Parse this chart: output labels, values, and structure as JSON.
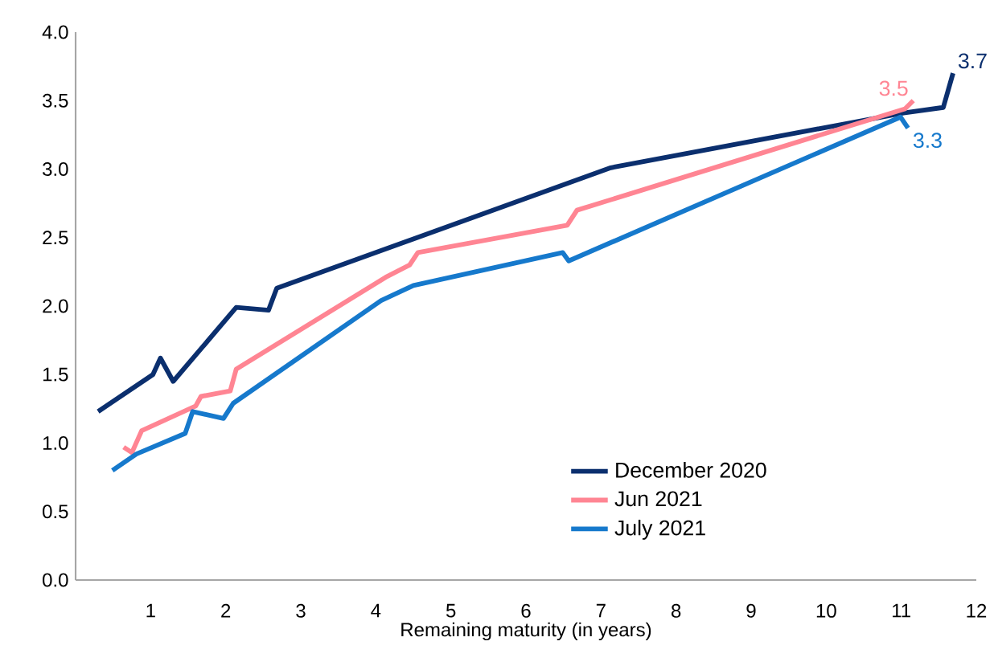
{
  "chart_data": {
    "type": "line",
    "xlabel": "Remaining maturity (in years)",
    "xlim": [
      0,
      12
    ],
    "xticks": [
      1,
      2,
      3,
      4,
      5,
      6,
      7,
      8,
      9,
      10,
      11,
      12
    ],
    "ylim": [
      0,
      4
    ],
    "yticks": [
      {
        "value": 0,
        "label": "0.0"
      },
      {
        "value": 0.5,
        "label": "0.5"
      },
      {
        "value": 1,
        "label": "1.0"
      },
      {
        "value": 1.5,
        "label": "1.5"
      },
      {
        "value": 2,
        "label": "2.0"
      },
      {
        "value": 2.5,
        "label": "2.5"
      },
      {
        "value": 3,
        "label": "3.0"
      },
      {
        "value": 3.5,
        "label": "3.5"
      },
      {
        "value": 4,
        "label": "4.0"
      }
    ],
    "grid": false,
    "legend": "bottom right",
    "marker": "none",
    "line_style": "solid",
    "series": [
      {
        "name": "December 2020",
        "color": "#0b2f6e",
        "x": [
          0.3,
          1.03,
          1.13,
          1.3,
          2.14,
          2.57,
          2.68,
          7.13,
          11.03,
          11.56,
          11.69
        ],
        "values": [
          1.23,
          1.5,
          1.62,
          1.45,
          1.99,
          1.97,
          2.13,
          3.01,
          3.41,
          3.45,
          3.7
        ]
      },
      {
        "name": "Jun 2021",
        "color": "#ff8593",
        "x": [
          0.64,
          0.75,
          0.88,
          1.6,
          1.67,
          2.06,
          2.14,
          4.13,
          4.45,
          4.56,
          6.55,
          6.68,
          11.05,
          11.16
        ],
        "values": [
          0.97,
          0.93,
          1.09,
          1.27,
          1.34,
          1.38,
          1.54,
          2.21,
          2.3,
          2.39,
          2.59,
          2.7,
          3.44,
          3.5
        ]
      },
      {
        "name": "July 2021",
        "color": "#1679cc",
        "x": [
          0.49,
          0.81,
          1.46,
          1.56,
          1.97,
          2.1,
          4.07,
          4.5,
          6.49,
          6.57,
          10.99,
          11.09
        ],
        "values": [
          0.8,
          0.92,
          1.07,
          1.23,
          1.18,
          1.29,
          2.04,
          2.15,
          2.39,
          2.33,
          3.38,
          3.3
        ]
      }
    ],
    "annotations": [
      {
        "text": "3.7",
        "x": 11.69,
        "y": 3.7
      },
      {
        "text": "3.5",
        "x": 11.16,
        "y": 3.5
      },
      {
        "text": "3.3",
        "x": 11.09,
        "y": 3.3
      }
    ]
  }
}
